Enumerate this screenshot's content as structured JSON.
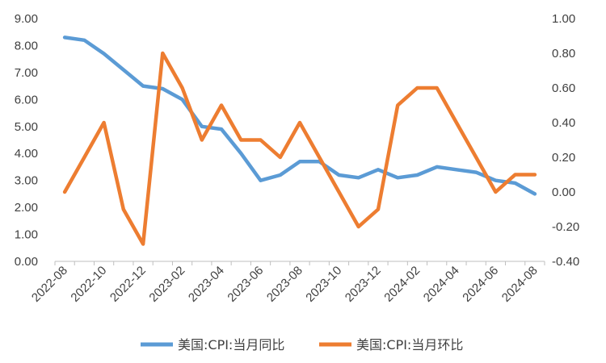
{
  "chart_data": {
    "type": "line",
    "x": [
      "2022-08",
      "2022-09",
      "2022-10",
      "2022-11",
      "2022-12",
      "2023-01",
      "2023-02",
      "2023-03",
      "2023-04",
      "2023-05",
      "2023-06",
      "2023-07",
      "2023-08",
      "2023-09",
      "2023-10",
      "2023-11",
      "2023-12",
      "2024-01",
      "2024-02",
      "2024-03",
      "2024-04",
      "2024-05",
      "2024-06",
      "2024-07",
      "2024-08"
    ],
    "x_tick_labels": [
      "2022-08",
      "2022-10",
      "2022-12",
      "2023-02",
      "2023-04",
      "2023-06",
      "2023-08",
      "2023-10",
      "2023-12",
      "2024-02",
      "2024-04",
      "2024-06",
      "2024-08"
    ],
    "series": [
      {
        "name": "美国:CPI:当月同比",
        "axis": "left",
        "color": "#5B9BD5",
        "values": [
          8.3,
          8.2,
          7.7,
          7.1,
          6.5,
          6.4,
          6.0,
          5.0,
          4.9,
          4.0,
          3.0,
          3.2,
          3.7,
          3.7,
          3.2,
          3.1,
          3.4,
          3.1,
          3.2,
          3.5,
          3.4,
          3.3,
          3.0,
          2.9,
          2.5
        ]
      },
      {
        "name": "美国:CPI:当月环比",
        "axis": "right",
        "color": "#ED7D31",
        "values": [
          0.0,
          0.2,
          0.4,
          -0.1,
          -0.3,
          0.8,
          0.6,
          0.3,
          0.5,
          0.3,
          0.3,
          0.2,
          0.4,
          0.2,
          0.0,
          -0.2,
          -0.1,
          0.5,
          0.6,
          0.6,
          0.4,
          0.2,
          0.0,
          0.1,
          0.1
        ]
      }
    ],
    "y_left": {
      "ticks": [
        "0.00",
        "1.00",
        "2.00",
        "3.00",
        "4.00",
        "5.00",
        "6.00",
        "7.00",
        "8.00",
        "9.00"
      ],
      "ylim": [
        0,
        9
      ]
    },
    "y_right": {
      "ticks": [
        "-0.40",
        "-0.20",
        "0.00",
        "0.20",
        "0.40",
        "0.60",
        "0.80",
        "1.00"
      ],
      "ylim": [
        -0.4,
        1.0
      ]
    },
    "grid": false,
    "legend": "bottom"
  }
}
